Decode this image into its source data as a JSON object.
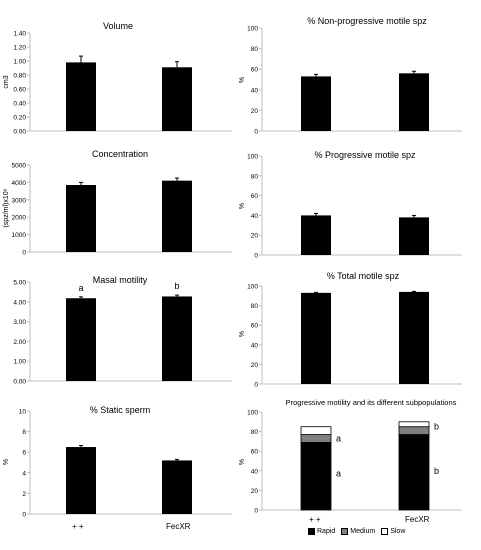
{
  "colors": {
    "bar": "#000000",
    "medium": "#808080",
    "slow": "#ffffff",
    "axis": "#bfbfbf"
  },
  "x_labels": {
    "group1": "+  +",
    "group2": "FecXR"
  },
  "x_labels_right": {
    "group1": "+  +",
    "group2": "FecXR"
  },
  "legend": [
    {
      "label": "Rapid",
      "color": "#000000"
    },
    {
      "label": "Medium",
      "color": "#808080"
    },
    {
      "label": "Slow",
      "color": "#ffffff"
    }
  ],
  "chart_data": [
    {
      "type": "bar",
      "title": "Volume",
      "ylabel": "cm3",
      "categories": [
        "+  +",
        "FecXR"
      ],
      "values": [
        0.98,
        0.91
      ],
      "errors": [
        0.09,
        0.08
      ],
      "ylim": [
        0,
        1.4
      ],
      "step": 0.2,
      "decimals": 2
    },
    {
      "type": "bar",
      "title": "% Non-progressive motile spz",
      "ylabel": "%",
      "categories": [
        "+  +",
        "FecXR"
      ],
      "values": [
        53,
        56
      ],
      "errors": [
        2,
        2
      ],
      "ylim": [
        0,
        100
      ],
      "step": 20,
      "decimals": 0
    },
    {
      "type": "bar",
      "title": "Concentration",
      "ylabel": "(spz/ml)x10⁶",
      "categories": [
        "+  +",
        "FecXR"
      ],
      "values": [
        3850,
        4100
      ],
      "errors": [
        150,
        150
      ],
      "ylim": [
        0,
        5000
      ],
      "step": 1000,
      "decimals": 0
    },
    {
      "type": "bar",
      "title": "% Progressive motile spz",
      "ylabel": "%",
      "categories": [
        "+  +",
        "FecXR"
      ],
      "values": [
        40,
        38
      ],
      "errors": [
        2,
        2
      ],
      "ylim": [
        0,
        100
      ],
      "step": 20,
      "decimals": 0
    },
    {
      "type": "bar",
      "title": "Masal motility",
      "ylabel": "",
      "categories": [
        "+  +",
        "FecXR"
      ],
      "values": [
        4.18,
        4.27
      ],
      "errors": [
        0.07,
        0.07
      ],
      "ylim": [
        0,
        5
      ],
      "step": 1,
      "decimals": 2,
      "bar_labels": [
        "a",
        "b"
      ]
    },
    {
      "type": "bar",
      "title": "% Total motile spz",
      "ylabel": "%",
      "categories": [
        "+  +",
        "FecXR"
      ],
      "values": [
        93,
        94
      ],
      "errors": [
        0.5,
        0.5
      ],
      "ylim": [
        0,
        100
      ],
      "step": 20,
      "decimals": 0
    },
    {
      "type": "bar",
      "title": "% Static sperm",
      "ylabel": "%",
      "categories": [
        "+  +",
        "FecXR"
      ],
      "values": [
        6.5,
        5.2
      ],
      "errors": [
        0.15,
        0.1
      ],
      "ylim": [
        0,
        10
      ],
      "step": 2,
      "decimals": 0
    },
    {
      "type": "stacked-bar",
      "title": "Progressive motility and its different subpopulations",
      "ylabel": "%",
      "categories": [
        "+  +",
        "FecXR"
      ],
      "ylim": [
        0,
        100
      ],
      "step": 20,
      "decimals": 0,
      "series": [
        {
          "name": "Rapid",
          "values": [
            69,
            77
          ]
        },
        {
          "name": "Medium",
          "values": [
            8,
            8
          ]
        },
        {
          "name": "Slow",
          "values": [
            8,
            5
          ]
        }
      ],
      "annotations": [
        {
          "category": 0,
          "y": 73,
          "text": "a"
        },
        {
          "category": 0,
          "y": 37,
          "text": "a"
        },
        {
          "category": 1,
          "y": 85,
          "text": "b"
        },
        {
          "category": 1,
          "y": 40,
          "text": "b"
        }
      ]
    }
  ]
}
